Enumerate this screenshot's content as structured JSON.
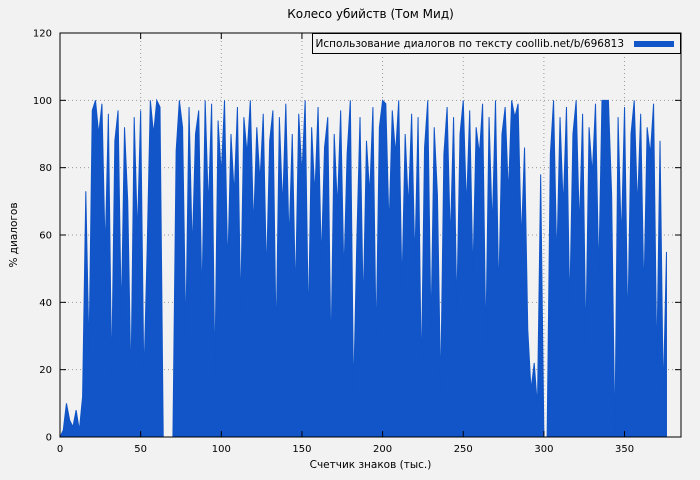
{
  "chart_data": {
    "type": "area",
    "title": "Колесо убийств (Том Мид)",
    "xlabel": "Счетчик знаков (тыс.)",
    "ylabel": "% диалогов",
    "legend_label": "Использование диалогов по тексту coollib.net/b/696813",
    "legend_position": "top-right",
    "color": "#1155c8",
    "grid": true,
    "xlim": [
      0,
      385
    ],
    "ylim": [
      0,
      120
    ],
    "x_ticks": [
      0,
      50,
      100,
      150,
      200,
      250,
      300,
      350
    ],
    "y_ticks": [
      0,
      20,
      40,
      60,
      80,
      100,
      120
    ],
    "series": [
      {
        "name": "Использование диалогов по тексту coollib.net/b/696813",
        "x": [
          0,
          2,
          4,
          6,
          8,
          10,
          12,
          14,
          16,
          18,
          20,
          22,
          24,
          26,
          28,
          30,
          32,
          34,
          36,
          38,
          40,
          42,
          44,
          46,
          48,
          50,
          52,
          54,
          56,
          58,
          60,
          62,
          64,
          66,
          68,
          70,
          72,
          74,
          76,
          78,
          80,
          82,
          84,
          86,
          88,
          90,
          92,
          94,
          96,
          98,
          100,
          102,
          104,
          106,
          108,
          110,
          112,
          114,
          116,
          118,
          120,
          122,
          124,
          126,
          128,
          130,
          132,
          134,
          136,
          138,
          140,
          142,
          144,
          146,
          148,
          150,
          152,
          154,
          156,
          158,
          160,
          162,
          164,
          166,
          168,
          170,
          172,
          174,
          176,
          178,
          180,
          182,
          184,
          186,
          188,
          190,
          192,
          194,
          196,
          198,
          200,
          202,
          204,
          206,
          208,
          210,
          212,
          214,
          216,
          218,
          220,
          222,
          224,
          226,
          228,
          230,
          232,
          234,
          236,
          238,
          240,
          242,
          244,
          246,
          248,
          250,
          252,
          254,
          256,
          258,
          260,
          262,
          264,
          266,
          268,
          270,
          272,
          274,
          276,
          278,
          280,
          282,
          284,
          286,
          288,
          290,
          292,
          294,
          296,
          298,
          300,
          302,
          304,
          306,
          308,
          310,
          312,
          314,
          316,
          318,
          320,
          322,
          324,
          326,
          328,
          330,
          332,
          334,
          336,
          338,
          340,
          342,
          344,
          346,
          348,
          350,
          352,
          354,
          356,
          358,
          360,
          362,
          364,
          366,
          368,
          370,
          372,
          374,
          376
        ],
        "y": [
          0,
          2,
          10,
          5,
          3,
          8,
          2,
          12,
          73,
          25,
          97,
          100,
          90,
          99,
          55,
          96,
          18,
          88,
          97,
          35,
          92,
          70,
          16,
          95,
          60,
          97,
          17,
          55,
          100,
          90,
          100,
          98,
          0,
          0,
          0,
          0,
          85,
          100,
          92,
          30,
          98,
          55,
          90,
          97,
          40,
          100,
          68,
          99,
          19,
          94,
          78,
          100,
          50,
          90,
          72,
          98,
          38,
          95,
          84,
          100,
          62,
          92,
          76,
          96,
          48,
          88,
          97,
          28,
          95,
          68,
          99,
          58,
          90,
          42,
          96,
          78,
          100,
          33,
          92,
          72,
          98,
          52,
          86,
          95,
          24,
          90,
          68,
          97,
          48,
          84,
          100,
          12,
          58,
          95,
          38,
          88,
          72,
          98,
          28,
          92,
          100,
          99,
          62,
          97,
          84,
          100,
          44,
          90,
          68,
          96,
          52,
          95,
          18,
          86,
          100,
          32,
          92,
          72,
          14,
          84,
          98,
          58,
          95,
          38,
          90,
          100,
          68,
          97,
          48,
          92,
          84,
          99,
          28,
          95,
          62,
          100,
          42,
          90,
          98,
          72,
          100,
          95,
          99,
          58,
          86,
          32,
          14,
          22,
          9,
          78,
          0,
          0,
          84,
          100,
          52,
          95,
          68,
          98,
          38,
          90,
          100,
          62,
          96,
          28,
          92,
          78,
          99,
          48,
          100,
          100,
          100,
          72,
          0,
          95,
          58,
          98,
          32,
          90,
          100,
          68,
          96,
          42,
          92,
          84,
          99,
          22,
          88,
          12,
          55
        ]
      }
    ]
  }
}
